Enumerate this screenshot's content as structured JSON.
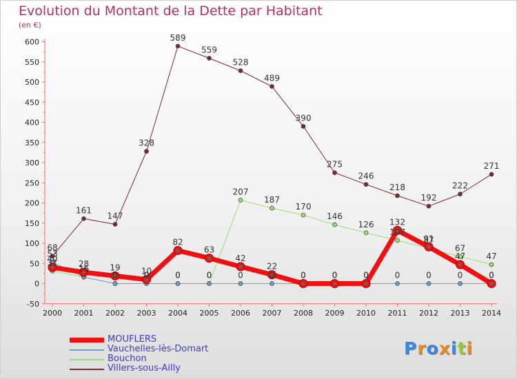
{
  "chart_data": {
    "type": "line",
    "title": "Evolution du Montant de la Dette par Habitant",
    "subtitle": "(en €)",
    "xlabel": "",
    "ylabel": "",
    "ylim": [
      -50,
      600
    ],
    "yticks": [
      -50,
      0,
      50,
      100,
      150,
      200,
      250,
      300,
      350,
      400,
      450,
      500,
      550,
      600
    ],
    "ytick_labels": [
      "-50",
      "0",
      "50",
      "100",
      "150",
      "200",
      "250",
      "300",
      "350",
      "400",
      "450",
      "500",
      "550",
      "600"
    ],
    "x": [
      "2000",
      "2001",
      "2002",
      "2003",
      "2004",
      "2005",
      "2006",
      "2007",
      "2008",
      "2009",
      "2010",
      "2011",
      "2012",
      "2013",
      "2014"
    ],
    "grid": false,
    "legend_position": "bottom-left",
    "series": [
      {
        "name": "Villers-sous-Ailly",
        "color": "#7a2a2a",
        "values": [
          68,
          161,
          147,
          328,
          589,
          559,
          528,
          489,
          390,
          275,
          246,
          218,
          192,
          222,
          271
        ],
        "labels": [
          "68",
          "161",
          "147",
          "328",
          "589",
          "559",
          "528",
          "489",
          "390",
          "275",
          "246",
          "218",
          "192",
          "222",
          "271"
        ]
      },
      {
        "name": "Bouchon",
        "color": "#99dd77",
        "values": [
          31,
          16,
          0,
          0,
          0,
          0,
          207,
          187,
          170,
          146,
          126,
          107,
          87,
          67,
          47
        ],
        "labels": [
          "31",
          "16",
          "0",
          "0",
          "0",
          "0",
          "207",
          "187",
          "170",
          "146",
          "126",
          "107",
          "87",
          "67",
          "47"
        ]
      },
      {
        "name": "Vauchelles-lès-Domart",
        "color": "#6d9ec8",
        "values": [
          53,
          16,
          0,
          0,
          0,
          0,
          0,
          0,
          0,
          0,
          0,
          0,
          0,
          0,
          0
        ],
        "labels": [
          "53",
          "16",
          "0",
          "0",
          "0",
          "0",
          "0",
          "0",
          "0",
          "0",
          "0",
          "0",
          "0",
          "0",
          "0"
        ]
      },
      {
        "name": "MOUFLERS",
        "color": "#ee1111",
        "values": [
          40,
          28,
          19,
          10,
          82,
          63,
          42,
          22,
          0,
          0,
          0,
          132,
          91,
          47,
          0
        ],
        "labels": [
          "40",
          "28",
          "19",
          "10",
          "82",
          "63",
          "42",
          "22",
          "0",
          "0",
          "0",
          "132",
          "91",
          "47",
          "0"
        ]
      }
    ],
    "legend": [
      "MOUFLERS",
      "Vauchelles-lès-Domart",
      "Bouchon",
      "Villers-sous-Ailly"
    ]
  },
  "logo": {
    "text": "Proxiti",
    "letters": [
      "P",
      "r",
      "o",
      "x",
      "i",
      "t",
      "i"
    ],
    "colors": [
      "#3c88d6",
      "#e88a1f",
      "#3c88d6",
      "#e88a1f",
      "#3c88d6",
      "#9ac93a",
      "#e88a1f"
    ]
  }
}
